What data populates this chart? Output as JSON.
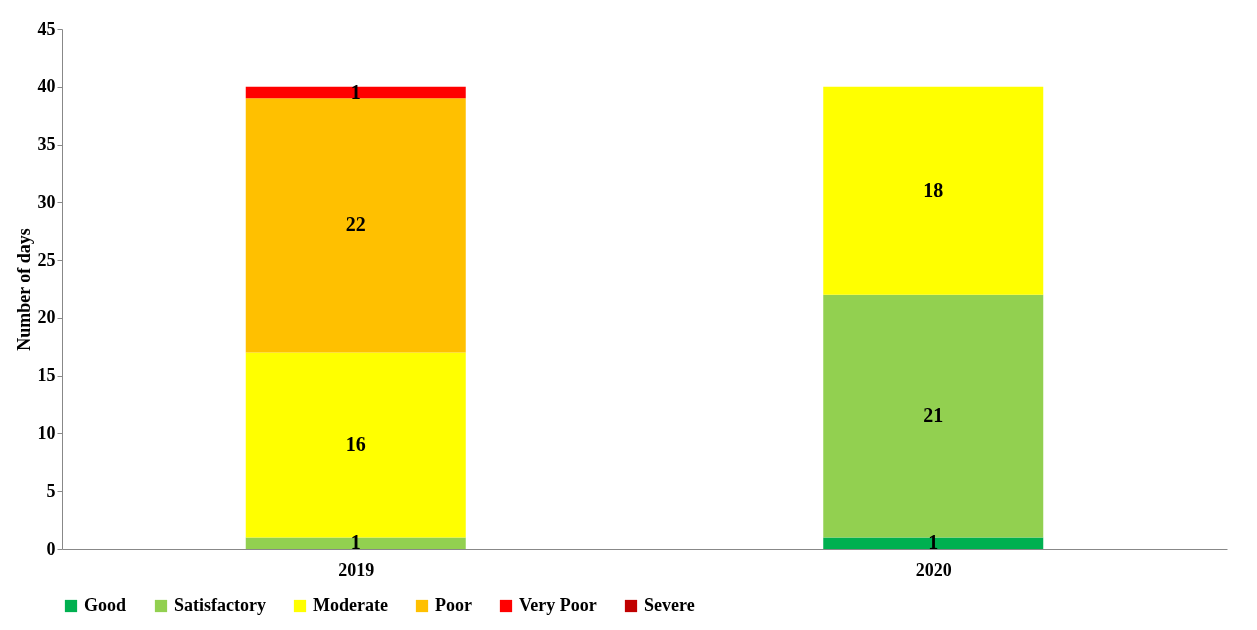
{
  "chart_data": {
    "type": "bar",
    "stacked": true,
    "ylabel": "Number of days",
    "categories": [
      "2019",
      "2020"
    ],
    "ylim": [
      0,
      45
    ],
    "yticks": [
      0,
      5,
      10,
      15,
      20,
      25,
      30,
      35,
      40,
      45
    ],
    "grid": false,
    "legend": "bottom",
    "series": [
      {
        "name": "Good",
        "color": "#00b050",
        "values": [
          0,
          1
        ],
        "value_labels": [
          null,
          "1"
        ]
      },
      {
        "name": "Satisfactory",
        "color": "#92d050",
        "values": [
          1,
          21
        ],
        "value_labels": [
          "1",
          "21"
        ]
      },
      {
        "name": "Moderate",
        "color": "#ffff00",
        "values": [
          16,
          18
        ],
        "value_labels": [
          "16",
          "18"
        ]
      },
      {
        "name": "Poor",
        "color": "#ffc000",
        "values": [
          22,
          0
        ],
        "value_labels": [
          "22",
          null
        ]
      },
      {
        "name": "Very Poor",
        "color": "#ff0000",
        "values": [
          1,
          0
        ],
        "value_labels": [
          "1",
          null
        ]
      },
      {
        "name": "Severe",
        "color": "#c00000",
        "values": [
          0,
          0
        ],
        "value_labels": [
          null,
          null
        ]
      }
    ]
  }
}
